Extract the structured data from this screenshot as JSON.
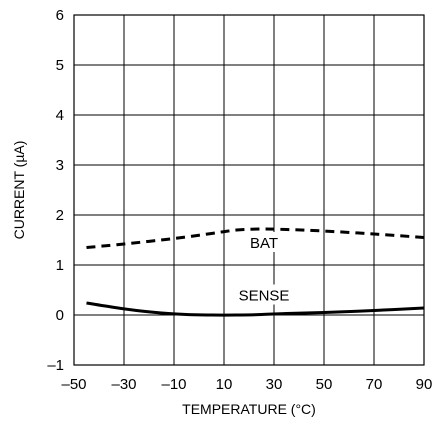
{
  "chart_data": {
    "type": "line",
    "title": "",
    "xlabel": "TEMPERATURE (°C)",
    "ylabel": "CURRENT (µA)",
    "xlim": [
      -50,
      90
    ],
    "ylim": [
      -1,
      6
    ],
    "xticks": [
      -50,
      -30,
      -10,
      10,
      30,
      50,
      70,
      90
    ],
    "xtick_labels": [
      "–50",
      "–30",
      "–10",
      "10",
      "30",
      "50",
      "70",
      "90"
    ],
    "yticks": [
      -1,
      0,
      1,
      2,
      3,
      4,
      5,
      6
    ],
    "ytick_labels": [
      "–1",
      "0",
      "1",
      "2",
      "3",
      "4",
      "5",
      "6"
    ],
    "grid": true,
    "series": [
      {
        "name": "BAT",
        "style": "dashed",
        "x": [
          -45,
          -30,
          -10,
          5,
          15,
          25,
          35,
          50,
          70,
          90
        ],
        "y": [
          1.35,
          1.42,
          1.53,
          1.63,
          1.7,
          1.72,
          1.71,
          1.68,
          1.62,
          1.55
        ]
      },
      {
        "name": "SENSE",
        "style": "solid",
        "x": [
          -45,
          -35,
          -25,
          -15,
          -5,
          5,
          15,
          25,
          35,
          50,
          70,
          90
        ],
        "y": [
          0.24,
          0.16,
          0.09,
          0.04,
          0.01,
          0.0,
          0.0,
          0.01,
          0.03,
          0.05,
          0.09,
          0.14
        ]
      }
    ],
    "annotations": [
      {
        "text": "BAT",
        "x": 26,
        "y": 1.4
      },
      {
        "text": "SENSE",
        "x": 26,
        "y": 0.35
      }
    ]
  }
}
